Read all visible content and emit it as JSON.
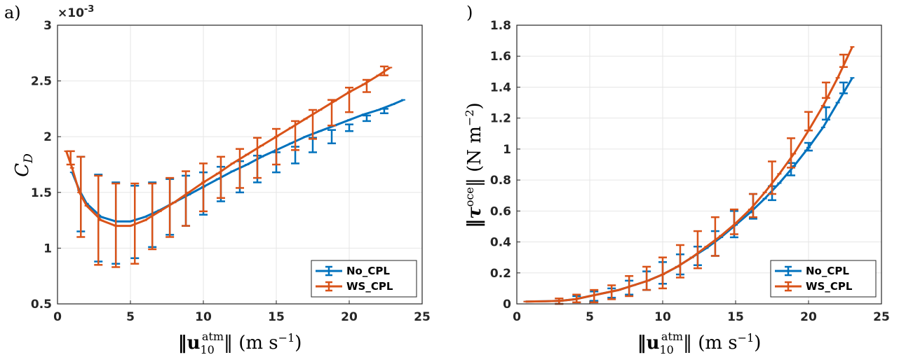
{
  "colors": {
    "no_cpl": "#0072BD",
    "ws_cpl": "#D95319",
    "grid": "#e6e6e6",
    "axis": "#262626"
  },
  "panels": [
    {
      "label": "a)",
      "multiplier": "×10",
      "multiplier_exp": "-3",
      "ylabel_main": "C",
      "ylabel_sub": "D"
    },
    {
      "label": ")",
      "ylabel_main": "‖τ",
      "ylabel_sup": "oce",
      "ylabel_rest": "‖ (N m",
      "ylabel_rest_sup": "−2",
      "ylabel_close": ")"
    }
  ],
  "xlabel": {
    "pre": "‖u",
    "sub": "10",
    "sup": "atm",
    "post": "‖ (m s",
    "post_sup": "−1",
    "close": ")"
  },
  "chart_data": [
    {
      "type": "line",
      "title": "",
      "xlim": [
        0,
        25
      ],
      "ylim": [
        0.5,
        3
      ],
      "xticks": [
        "0",
        "5",
        "10",
        "15",
        "20",
        "25"
      ],
      "yticks": [
        "0.5",
        "1",
        "1.5",
        "2",
        "2.5",
        "3"
      ],
      "y_scale_note": "×10^-3",
      "grid": true,
      "legend_position": "bottom-right",
      "series": [
        {
          "name": "No_CPL",
          "x": [
            1.0,
            1.5,
            2.0,
            3.0,
            4.0,
            5.0,
            6.0,
            7.0,
            8.0,
            9.0,
            10.0,
            11.0,
            12.0,
            13.0,
            14.0,
            15.0,
            16.0,
            17.0,
            18.0,
            19.0,
            20.0,
            21.0,
            22.0,
            23.0,
            23.7
          ],
          "values": [
            1.68,
            1.52,
            1.4,
            1.28,
            1.24,
            1.24,
            1.28,
            1.34,
            1.41,
            1.48,
            1.55,
            1.62,
            1.69,
            1.75,
            1.82,
            1.88,
            1.94,
            2.0,
            2.05,
            2.1,
            2.15,
            2.2,
            2.24,
            2.29,
            2.33
          ],
          "errorbars": [
            {
              "x": 1.6,
              "lo": 1.15,
              "hi": 1.82
            },
            {
              "x": 2.8,
              "lo": 0.88,
              "hi": 1.66
            },
            {
              "x": 4.0,
              "lo": 0.86,
              "hi": 1.59
            },
            {
              "x": 5.3,
              "lo": 0.91,
              "hi": 1.56
            },
            {
              "x": 6.5,
              "lo": 1.01,
              "hi": 1.59
            },
            {
              "x": 7.7,
              "lo": 1.12,
              "hi": 1.62
            },
            {
              "x": 8.8,
              "lo": 1.2,
              "hi": 1.65
            },
            {
              "x": 10.0,
              "lo": 1.3,
              "hi": 1.68
            },
            {
              "x": 11.2,
              "lo": 1.42,
              "hi": 1.73
            },
            {
              "x": 12.5,
              "lo": 1.5,
              "hi": 1.78
            },
            {
              "x": 13.7,
              "lo": 1.59,
              "hi": 1.83
            },
            {
              "x": 15.0,
              "lo": 1.68,
              "hi": 1.86
            },
            {
              "x": 16.3,
              "lo": 1.76,
              "hi": 1.91
            },
            {
              "x": 17.5,
              "lo": 1.86,
              "hi": 1.99
            },
            {
              "x": 18.8,
              "lo": 1.94,
              "hi": 2.06
            },
            {
              "x": 20.0,
              "lo": 2.05,
              "hi": 2.11
            },
            {
              "x": 21.2,
              "lo": 2.14,
              "hi": 2.19
            },
            {
              "x": 22.4,
              "lo": 2.21,
              "hi": 2.25
            }
          ]
        },
        {
          "name": "WS_CPL",
          "x": [
            0.6,
            1.0,
            1.5,
            2.0,
            3.0,
            4.0,
            5.0,
            6.0,
            7.0,
            8.0,
            9.0,
            10.0,
            11.0,
            12.0,
            13.0,
            14.0,
            15.0,
            16.0,
            17.0,
            18.0,
            19.0,
            20.0,
            21.0,
            22.0,
            22.8
          ],
          "values": [
            1.87,
            1.72,
            1.5,
            1.38,
            1.25,
            1.2,
            1.2,
            1.25,
            1.33,
            1.41,
            1.5,
            1.59,
            1.67,
            1.76,
            1.84,
            1.92,
            2.0,
            2.08,
            2.16,
            2.24,
            2.32,
            2.4,
            2.47,
            2.55,
            2.62
          ],
          "errorbars": [
            {
              "x": 0.9,
              "lo": 1.75,
              "hi": 1.87
            },
            {
              "x": 1.6,
              "lo": 1.1,
              "hi": 1.82
            },
            {
              "x": 2.8,
              "lo": 0.85,
              "hi": 1.65
            },
            {
              "x": 4.0,
              "lo": 0.83,
              "hi": 1.58
            },
            {
              "x": 5.3,
              "lo": 0.86,
              "hi": 1.58
            },
            {
              "x": 6.5,
              "lo": 0.99,
              "hi": 1.58
            },
            {
              "x": 7.7,
              "lo": 1.1,
              "hi": 1.63
            },
            {
              "x": 8.8,
              "lo": 1.2,
              "hi": 1.69
            },
            {
              "x": 10.0,
              "lo": 1.33,
              "hi": 1.76
            },
            {
              "x": 11.2,
              "lo": 1.45,
              "hi": 1.82
            },
            {
              "x": 12.5,
              "lo": 1.54,
              "hi": 1.89
            },
            {
              "x": 13.7,
              "lo": 1.63,
              "hi": 1.99
            },
            {
              "x": 15.0,
              "lo": 1.75,
              "hi": 2.07
            },
            {
              "x": 16.3,
              "lo": 1.88,
              "hi": 2.14
            },
            {
              "x": 17.5,
              "lo": 1.98,
              "hi": 2.24
            },
            {
              "x": 18.8,
              "lo": 2.1,
              "hi": 2.33
            },
            {
              "x": 20.0,
              "lo": 2.22,
              "hi": 2.44
            },
            {
              "x": 21.2,
              "lo": 2.4,
              "hi": 2.51
            },
            {
              "x": 22.4,
              "lo": 2.55,
              "hi": 2.63
            }
          ]
        }
      ]
    },
    {
      "type": "line",
      "title": "",
      "xlim": [
        0,
        25
      ],
      "ylim": [
        0,
        1.8
      ],
      "xticks": [
        "0",
        "5",
        "10",
        "15",
        "20",
        "25"
      ],
      "yticks": [
        "0",
        "0.2",
        "0.4",
        "0.6",
        "0.8",
        "1",
        "1.2",
        "1.4",
        "1.6",
        "1.8"
      ],
      "grid": true,
      "legend_position": "bottom-right",
      "series": [
        {
          "name": "No_CPL",
          "x": [
            0.6,
            2.0,
            3.0,
            4.0,
            5.0,
            6.0,
            7.0,
            8.0,
            9.0,
            10.0,
            11.0,
            12.0,
            13.0,
            14.0,
            15.0,
            16.0,
            17.0,
            18.0,
            19.0,
            20.0,
            21.0,
            22.0,
            23.0
          ],
          "values": [
            0.015,
            0.017,
            0.02,
            0.03,
            0.05,
            0.07,
            0.09,
            0.12,
            0.15,
            0.19,
            0.24,
            0.3,
            0.36,
            0.43,
            0.51,
            0.59,
            0.68,
            0.78,
            0.89,
            1.01,
            1.14,
            1.3,
            1.46
          ],
          "errorbars": [
            {
              "x": 2.9,
              "lo": 0.0,
              "hi": 0.035
            },
            {
              "x": 4.1,
              "lo": 0.01,
              "hi": 0.05
            },
            {
              "x": 5.3,
              "lo": 0.02,
              "hi": 0.08
            },
            {
              "x": 6.5,
              "lo": 0.04,
              "hi": 0.1
            },
            {
              "x": 7.7,
              "lo": 0.06,
              "hi": 0.15
            },
            {
              "x": 8.9,
              "lo": 0.09,
              "hi": 0.21
            },
            {
              "x": 10.0,
              "lo": 0.13,
              "hi": 0.27
            },
            {
              "x": 11.2,
              "lo": 0.19,
              "hi": 0.32
            },
            {
              "x": 12.4,
              "lo": 0.25,
              "hi": 0.37
            },
            {
              "x": 13.6,
              "lo": 0.31,
              "hi": 0.47
            },
            {
              "x": 14.9,
              "lo": 0.43,
              "hi": 0.6
            },
            {
              "x": 16.2,
              "lo": 0.55,
              "hi": 0.71
            },
            {
              "x": 17.5,
              "lo": 0.67,
              "hi": 0.76
            },
            {
              "x": 18.8,
              "lo": 0.83,
              "hi": 0.91
            },
            {
              "x": 20.0,
              "lo": 0.99,
              "hi": 1.04
            },
            {
              "x": 21.2,
              "lo": 1.19,
              "hi": 1.27
            },
            {
              "x": 22.4,
              "lo": 1.36,
              "hi": 1.43
            }
          ]
        },
        {
          "name": "WS_CPL",
          "x": [
            0.6,
            2.0,
            3.0,
            4.0,
            5.0,
            6.0,
            7.0,
            8.0,
            9.0,
            10.0,
            11.0,
            12.0,
            13.0,
            14.0,
            15.0,
            16.0,
            17.0,
            18.0,
            19.0,
            20.0,
            21.0,
            22.0,
            23.0
          ],
          "values": [
            0.015,
            0.017,
            0.02,
            0.03,
            0.05,
            0.07,
            0.09,
            0.12,
            0.15,
            0.19,
            0.24,
            0.3,
            0.37,
            0.44,
            0.52,
            0.61,
            0.72,
            0.84,
            0.97,
            1.12,
            1.28,
            1.46,
            1.66
          ],
          "errorbars": [
            {
              "x": 2.9,
              "lo": 0.0,
              "hi": 0.035
            },
            {
              "x": 4.1,
              "lo": 0.01,
              "hi": 0.06
            },
            {
              "x": 5.3,
              "lo": 0.01,
              "hi": 0.09
            },
            {
              "x": 6.5,
              "lo": 0.03,
              "hi": 0.12
            },
            {
              "x": 7.7,
              "lo": 0.05,
              "hi": 0.18
            },
            {
              "x": 8.9,
              "lo": 0.09,
              "hi": 0.24
            },
            {
              "x": 10.0,
              "lo": 0.1,
              "hi": 0.3
            },
            {
              "x": 11.2,
              "lo": 0.17,
              "hi": 0.38
            },
            {
              "x": 12.4,
              "lo": 0.23,
              "hi": 0.47
            },
            {
              "x": 13.6,
              "lo": 0.31,
              "hi": 0.56
            },
            {
              "x": 14.9,
              "lo": 0.45,
              "hi": 0.61
            },
            {
              "x": 16.2,
              "lo": 0.56,
              "hi": 0.71
            },
            {
              "x": 17.5,
              "lo": 0.71,
              "hi": 0.92
            },
            {
              "x": 18.8,
              "lo": 0.88,
              "hi": 1.07
            },
            {
              "x": 20.0,
              "lo": 1.12,
              "hi": 1.24
            },
            {
              "x": 21.2,
              "lo": 1.33,
              "hi": 1.43
            },
            {
              "x": 22.4,
              "lo": 1.53,
              "hi": 1.61
            }
          ]
        }
      ]
    }
  ]
}
